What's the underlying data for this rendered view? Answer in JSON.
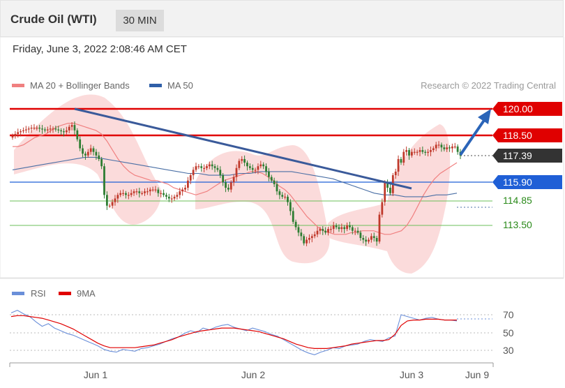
{
  "header": {
    "title": "Crude Oil (WTI)",
    "interval": "30 MIN",
    "timestamp": "Friday, June 3, 2022 2:08:46 AM CET"
  },
  "credit": "Research © 2022 Trading Central",
  "colors": {
    "bullish": "#c0392b",
    "bearish": "#2e7d32",
    "resistance": "#e00000",
    "support_blue": "#1f5fd6",
    "support_green": "#6bbf59",
    "trendline": "#3a5a9a",
    "ma20": "#f08080",
    "ma50": "#4a6fa5",
    "bollinger_fill": "#fbd7d7",
    "current_price_bg": "#333333",
    "rsi": "#6a8fd9",
    "rsi_ma": "#e00000"
  },
  "chart_data": [
    {
      "type": "candlestick",
      "legend": [
        {
          "name": "MA 20 + Bollinger Bands",
          "color": "#f08080"
        },
        {
          "name": "MA 50",
          "color": "#2f5fa8"
        }
      ],
      "x_ticks": [
        "Jun 1",
        "Jun 2",
        "Jun 3",
        "Jun 9"
      ],
      "ylim": [
        111.8,
        121.2
      ],
      "levels": [
        {
          "value": 120.0,
          "label": "120.00",
          "kind": "resistance"
        },
        {
          "value": 118.5,
          "label": "118.50",
          "kind": "resistance"
        },
        {
          "value": 117.39,
          "label": "117.39",
          "kind": "current"
        },
        {
          "value": 115.9,
          "label": "115.90",
          "kind": "pivot"
        },
        {
          "value": 114.85,
          "label": "114.85",
          "kind": "support"
        },
        {
          "value": 113.5,
          "label": "113.50",
          "kind": "support"
        }
      ],
      "trendline": [
        {
          "bar": 22,
          "y": 120.0
        },
        {
          "bar": 137,
          "y": 115.6
        }
      ],
      "projection_arrow": {
        "from": {
          "bar": 162,
          "y": 117.5
        },
        "to": {
          "bar": 172,
          "y": 119.7
        }
      },
      "close": [
        118.5,
        118.6,
        118.7,
        118.75,
        118.8,
        118.85,
        118.9,
        118.95,
        118.95,
        118.95,
        118.9,
        118.85,
        118.8,
        118.85,
        118.9,
        118.9,
        118.85,
        118.8,
        118.75,
        118.7,
        118.8,
        119.0,
        119.1,
        118.8,
        118.3,
        117.8,
        117.5,
        117.4,
        117.6,
        117.8,
        117.6,
        117.4,
        117.2,
        116.8,
        115.2,
        114.6,
        114.6,
        114.8,
        115.0,
        115.2,
        115.3,
        115.3,
        115.2,
        115.2,
        115.3,
        115.4,
        115.4,
        115.3,
        115.3,
        115.4,
        115.4,
        115.5,
        115.5,
        115.5,
        115.3,
        115.3,
        115.2,
        115.1,
        115.0,
        115.0,
        115.1,
        115.2,
        115.4,
        115.5,
        115.6,
        116.0,
        116.3,
        116.6,
        116.8,
        116.8,
        116.7,
        116.7,
        116.8,
        116.9,
        116.8,
        116.7,
        116.6,
        116.3,
        115.9,
        115.6,
        115.5,
        115.9,
        116.2,
        116.7,
        117.1,
        117.2,
        117.0,
        116.8,
        116.7,
        116.6,
        116.6,
        116.8,
        116.9,
        116.8,
        116.5,
        116.2,
        116.0,
        115.8,
        115.4,
        115.2,
        115.1,
        115.1,
        114.8,
        114.3,
        113.7,
        113.4,
        113.1,
        112.9,
        112.5,
        112.7,
        112.8,
        112.9,
        113.0,
        113.2,
        113.3,
        113.2,
        113.1,
        113.3,
        113.3,
        113.5,
        113.4,
        113.3,
        113.4,
        113.3,
        113.5,
        113.4,
        113.2,
        113.2,
        113.1,
        112.8,
        112.7,
        112.6,
        112.7,
        112.9,
        112.8,
        112.6,
        114.1,
        114.8,
        115.9,
        115.6,
        115.3,
        116.3,
        116.5,
        117.2,
        117.0,
        117.6,
        117.7,
        117.4,
        117.6,
        117.6,
        117.6,
        117.7,
        117.6,
        117.55,
        117.6,
        117.7,
        117.8,
        118.0,
        118.0,
        117.85,
        117.75,
        117.85,
        117.8,
        117.9,
        117.9,
        117.6,
        117.4
      ],
      "ma20": [
        117.9,
        117.9,
        118.0,
        118.2,
        118.4,
        118.5,
        118.6,
        118.8,
        119.0,
        119.1,
        119.2,
        119.2,
        119.1,
        119.0,
        118.9,
        118.8,
        118.6,
        118.2,
        117.7,
        117.2,
        116.8,
        116.5,
        116.3,
        116.2,
        116.1,
        116.0,
        116.0,
        115.9,
        115.8,
        115.6,
        115.5,
        115.4,
        115.3,
        115.2,
        115.3,
        115.4,
        115.6,
        115.8,
        116.0,
        116.1,
        116.2,
        116.3,
        116.4,
        116.5,
        116.5,
        116.4,
        116.2,
        116.0,
        115.7,
        115.5,
        115.2,
        114.8,
        114.4,
        114.0,
        113.7,
        113.4,
        113.2,
        113.1,
        113.0,
        113.0,
        113.0,
        113.1,
        113.1,
        113.2,
        113.2,
        113.2,
        113.1,
        113.0,
        113.0,
        113.1,
        113.2,
        113.5,
        114.0,
        114.6,
        115.2,
        115.7,
        116.1,
        116.4,
        116.6,
        116.8,
        117.0
      ],
      "ma50": [
        116.6,
        116.7,
        116.8,
        116.9,
        117.0,
        117.1,
        117.2,
        117.3,
        117.3,
        117.2,
        117.1,
        117.0,
        116.9,
        116.8,
        116.7,
        116.6,
        116.5,
        116.4,
        116.4,
        116.3,
        116.3,
        116.3,
        116.4,
        116.4,
        116.5,
        116.5,
        116.5,
        116.5,
        116.4,
        116.3,
        116.2,
        116.1,
        115.9,
        115.7,
        115.5,
        115.3,
        115.2,
        115.2,
        115.1,
        115.1,
        115.1,
        115.2,
        115.2,
        115.3
      ],
      "rsi": [
        72,
        75,
        71,
        68,
        62,
        57,
        60,
        55,
        52,
        49,
        47,
        44,
        41,
        38,
        35,
        31,
        29,
        28,
        31,
        30,
        29,
        32,
        33,
        35,
        37,
        40,
        43,
        45,
        49,
        52,
        50,
        55,
        53,
        56,
        58,
        59,
        56,
        54,
        52,
        55,
        53,
        51,
        48,
        46,
        42,
        38,
        34,
        30,
        27,
        25,
        28,
        30,
        33,
        32,
        35,
        36,
        37,
        40,
        42,
        41,
        40,
        44,
        46,
        70,
        68,
        66,
        64,
        66,
        67,
        65,
        64,
        64,
        63
      ],
      "rsi_ma": [
        68,
        69,
        69,
        68,
        67,
        66,
        64,
        62,
        60,
        57,
        54,
        50,
        46,
        42,
        38,
        35,
        33,
        33,
        33,
        33,
        33,
        34,
        35,
        36,
        38,
        40,
        42,
        45,
        47,
        49,
        51,
        52,
        53,
        54,
        55,
        55,
        55,
        54,
        53,
        52,
        51,
        49,
        47,
        45,
        43,
        40,
        37,
        35,
        33,
        32,
        32,
        32,
        33,
        34,
        35,
        37,
        38,
        39,
        40,
        41,
        41,
        42,
        48,
        58,
        63,
        64,
        64,
        65,
        65,
        65,
        64,
        64,
        64
      ],
      "rsi_levels": [
        70,
        50,
        30
      ]
    }
  ]
}
